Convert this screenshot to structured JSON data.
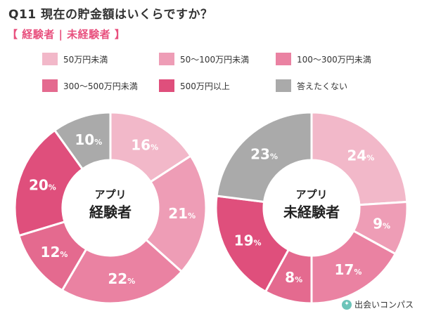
{
  "header": {
    "title": "Q11  現在の貯金額はいくらですか？",
    "subtitle": "【 経験者 | 未経験者 】"
  },
  "legend": [
    {
      "label": "50万円未満",
      "color": "#f2b8c9"
    },
    {
      "label": "50～100万円未満",
      "color": "#ee9db6"
    },
    {
      "label": "100～300万円未満",
      "color": "#ea82a2"
    },
    {
      "label": "300～500万円未満",
      "color": "#e46a8f"
    },
    {
      "label": "500万円以上",
      "color": "#df4f7c"
    },
    {
      "label": "答えたくない",
      "color": "#aaaaaa"
    }
  ],
  "chart_data": [
    {
      "type": "pie",
      "center_label": [
        "アプリ",
        "経験者"
      ],
      "categories": [
        "50万円未満",
        "50～100万円未満",
        "100～300万円未満",
        "300～500万円未満",
        "500万円以上",
        "答えたくない"
      ],
      "values": [
        16,
        21,
        22,
        12,
        20,
        10
      ],
      "value_suffix": "%"
    },
    {
      "type": "pie",
      "center_label": [
        "アプリ",
        "未経験者"
      ],
      "categories": [
        "50万円未満",
        "50～100万円未満",
        "100～300万円未満",
        "300～500万円未満",
        "500万円以上",
        "答えたくない"
      ],
      "values": [
        24,
        9,
        17,
        8,
        19,
        23
      ],
      "value_suffix": "%"
    }
  ],
  "brand": {
    "name": "出会いコンパス",
    "icon": "compass-icon"
  }
}
